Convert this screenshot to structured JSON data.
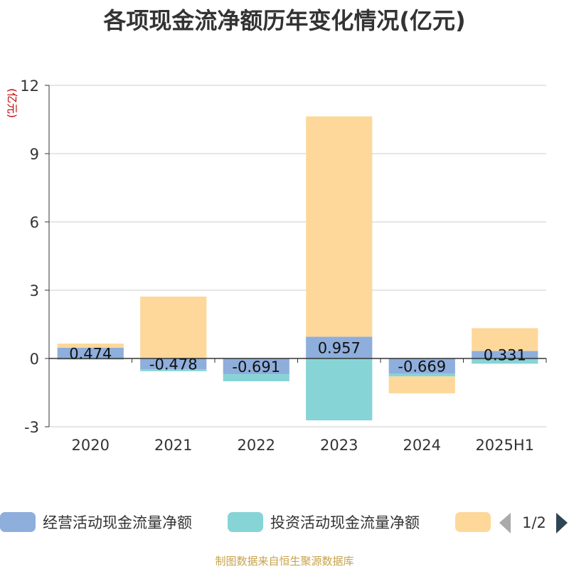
{
  "chart_data": {
    "type": "bar",
    "title": "各项现金流净额历年变化情况(亿元)",
    "ylabel": "(亿元)",
    "categories": [
      "2020",
      "2021",
      "2022",
      "2023",
      "2024",
      "2025H1"
    ],
    "ylim": [
      -3,
      12
    ],
    "yticks": [
      -3,
      0,
      3,
      6,
      9,
      12
    ],
    "grid": true,
    "stacked": true,
    "series": [
      {
        "name": "经营活动现金流量净额",
        "color": "#8eaedc",
        "values": [
          0.474,
          -0.478,
          -0.691,
          0.957,
          -0.669,
          0.331
        ]
      },
      {
        "name": "投资活动现金流量净额",
        "color": "#86d4d6",
        "values": [
          -0.05,
          -0.08,
          -0.31,
          -2.72,
          -0.12,
          -0.23
        ]
      },
      {
        "name": "",
        "color": "#fdd89a",
        "values": [
          0.18,
          2.72,
          0.0,
          9.68,
          -0.74,
          1.0
        ]
      }
    ],
    "data_labels": [
      "0.474",
      "-0.478",
      "-0.691",
      "0.957",
      "-0.669",
      "0.331"
    ]
  },
  "legend": {
    "placement": "bottom",
    "page": "1/2"
  },
  "footer": "制图数据来自恒生聚源数据库"
}
